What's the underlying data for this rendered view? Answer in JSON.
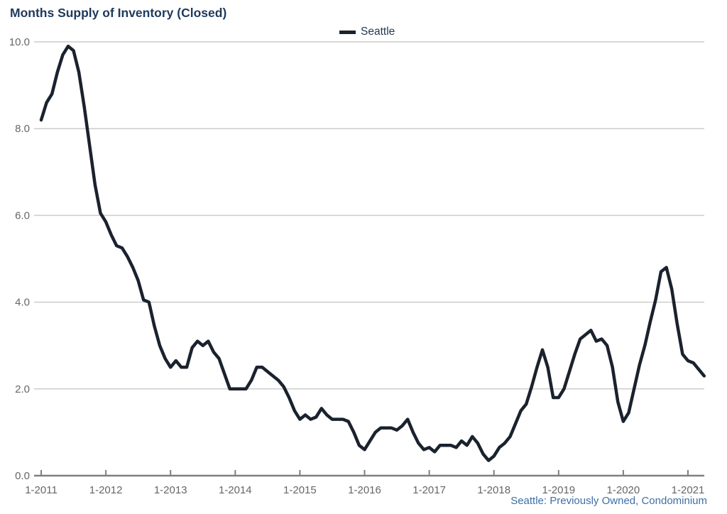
{
  "title": "Months Supply of Inventory (Closed)",
  "legend": {
    "label": "Seattle"
  },
  "footnote": "Seattle: Previously Owned, Condominium",
  "colors": {
    "title": "#1e3a5c",
    "line": "#1a222e",
    "grid": "#cccccc",
    "axis": "#7f7f7f",
    "tick_label": "#666666",
    "footnote": "#3f6fa5"
  },
  "chart_data": {
    "type": "line",
    "title": "Months Supply of Inventory (Closed)",
    "xlabel": "",
    "ylabel": "",
    "ylim": [
      0,
      10
    ],
    "y_ticks": [
      0.0,
      2.0,
      4.0,
      6.0,
      8.0,
      10.0
    ],
    "grid": "horizontal",
    "legend_position": "top-center",
    "x_tick_labels": [
      "1-2011",
      "1-2012",
      "1-2013",
      "1-2014",
      "1-2015",
      "1-2016",
      "1-2017",
      "1-2018",
      "1-2019",
      "1-2020",
      "1-2021"
    ],
    "series": [
      {
        "name": "Seattle",
        "frequency": "monthly",
        "start": "2011-01",
        "end": "2021-04",
        "values": [
          8.2,
          8.6,
          8.8,
          9.3,
          9.7,
          9.9,
          9.8,
          9.3,
          8.5,
          7.6,
          6.7,
          6.05,
          5.85,
          5.55,
          5.3,
          5.25,
          5.05,
          4.8,
          4.5,
          4.05,
          4.0,
          3.45,
          3.0,
          2.7,
          2.5,
          2.65,
          2.5,
          2.5,
          2.95,
          3.1,
          3.0,
          3.1,
          2.85,
          2.7,
          2.35,
          2.0,
          2.0,
          2.0,
          2.0,
          2.2,
          2.5,
          2.5,
          2.4,
          2.3,
          2.2,
          2.05,
          1.8,
          1.5,
          1.3,
          1.4,
          1.3,
          1.35,
          1.55,
          1.4,
          1.3,
          1.3,
          1.3,
          1.25,
          1.0,
          0.7,
          0.6,
          0.8,
          1.0,
          1.1,
          1.1,
          1.1,
          1.05,
          1.15,
          1.3,
          1.0,
          0.75,
          0.6,
          0.65,
          0.55,
          0.7,
          0.7,
          0.7,
          0.65,
          0.8,
          0.7,
          0.9,
          0.75,
          0.5,
          0.35,
          0.45,
          0.65,
          0.75,
          0.9,
          1.2,
          1.5,
          1.65,
          2.05,
          2.5,
          2.9,
          2.5,
          1.8,
          1.8,
          2.0,
          2.4,
          2.8,
          3.15,
          3.25,
          3.35,
          3.1,
          3.15,
          3.0,
          2.5,
          1.7,
          1.25,
          1.45,
          2.0,
          2.55,
          3.0,
          3.55,
          4.05,
          4.7,
          4.8,
          4.3,
          3.5,
          2.8,
          2.65,
          2.6,
          2.45,
          2.3
        ]
      }
    ]
  }
}
